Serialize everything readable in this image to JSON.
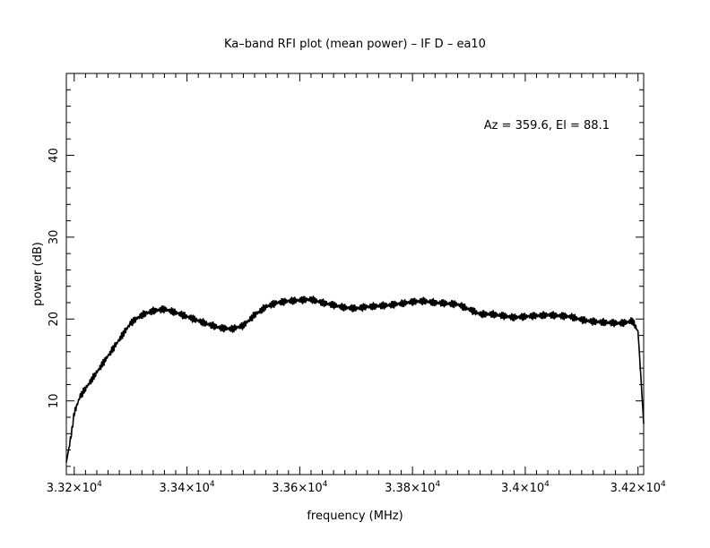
{
  "chart_data": {
    "type": "line",
    "title": "Ka–band RFI plot (mean power) – IF D – ea10",
    "xlabel": "frequency (MHz)",
    "ylabel": "power (dB)",
    "annotation": "Az = 359.6, El = 88.1",
    "xlim": [
      33186,
      34210
    ],
    "ylim": [
      1,
      50
    ],
    "x_ticks": [
      {
        "value": 33200,
        "mantissa": "3.32",
        "exp": "4"
      },
      {
        "value": 33400,
        "mantissa": "3.34",
        "exp": "4"
      },
      {
        "value": 33600,
        "mantissa": "3.36",
        "exp": "4"
      },
      {
        "value": 33800,
        "mantissa": "3.38",
        "exp": "4"
      },
      {
        "value": 34000,
        "mantissa": "3.4",
        "exp": "4"
      },
      {
        "value": 34200,
        "mantissa": "3.42",
        "exp": "4"
      }
    ],
    "y_ticks": [
      "10",
      "20",
      "30",
      "40"
    ],
    "grid": false,
    "series": [
      {
        "color": "#000000",
        "x": [
          33186,
          33190,
          33195,
          33200,
          33210,
          33220,
          33240,
          33260,
          33280,
          33300,
          33320,
          33340,
          33360,
          33380,
          33400,
          33420,
          33440,
          33460,
          33480,
          33500,
          33520,
          33540,
          33560,
          33580,
          33600,
          33620,
          33640,
          33660,
          33680,
          33700,
          33720,
          33740,
          33760,
          33780,
          33800,
          33820,
          33840,
          33860,
          33880,
          33900,
          33920,
          33940,
          33960,
          33980,
          34000,
          34020,
          34040,
          34060,
          34080,
          34100,
          34120,
          34140,
          34160,
          34170,
          34180,
          34190,
          34200,
          34205,
          34210
        ],
        "y": [
          2.5,
          4,
          6,
          8.5,
          10.5,
          11.5,
          13.5,
          15.5,
          17.5,
          19.5,
          20.5,
          21,
          21.2,
          20.8,
          20.3,
          19.8,
          19.3,
          18.9,
          18.8,
          19.2,
          20.5,
          21.5,
          22,
          22.2,
          22.3,
          22.4,
          22,
          21.7,
          21.4,
          21.3,
          21.5,
          21.6,
          21.7,
          21.9,
          22.1,
          22.2,
          22,
          21.9,
          21.8,
          21.2,
          20.6,
          20.6,
          20.4,
          20.2,
          20.3,
          20.4,
          20.5,
          20.4,
          20.3,
          19.9,
          19.7,
          19.6,
          19.5,
          19.5,
          19.6,
          19.8,
          18.5,
          13,
          7.2
        ]
      }
    ]
  }
}
